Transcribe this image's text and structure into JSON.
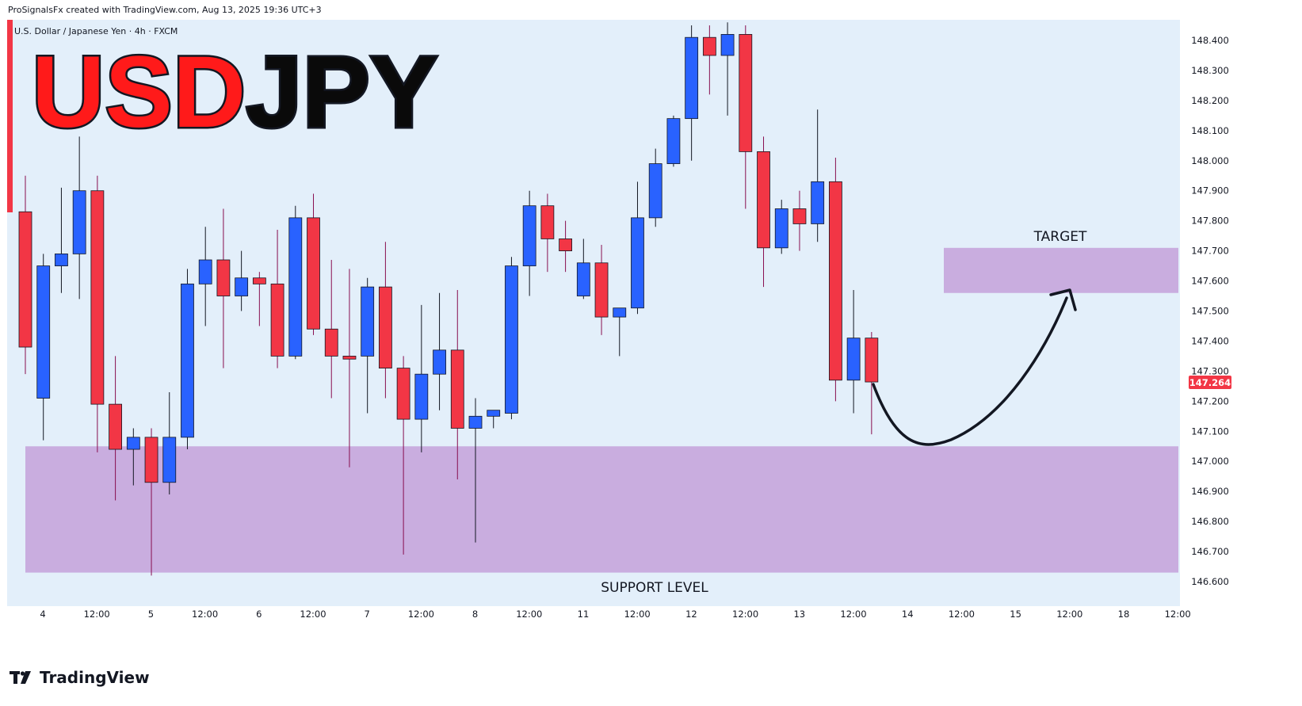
{
  "header": {
    "created_line": "ProSignalsFx created with TradingView.com, Aug 13, 2025 19:36 UTC+3",
    "symbol_line": "U.S. Dollar / Japanese Yen · 4h · FXCM"
  },
  "overlay": {
    "title_red": "USD",
    "title_black": "JPY",
    "target_label": "TARGET",
    "support_label": "SUPPORT LEVEL"
  },
  "brand": {
    "name": "TradingView",
    "icon": "tradingview-logo-icon"
  },
  "colors": {
    "background": "#e3effa",
    "up": "#2962ff",
    "down": "#f23645",
    "zone": "#c9addf",
    "price_tag": "#f23645"
  },
  "chart_data": {
    "type": "candlestick",
    "ylim": [
      146.55,
      148.45
    ],
    "y_ticks": [
      "148.400",
      "148.300",
      "148.200",
      "148.100",
      "148.000",
      "147.900",
      "147.800",
      "147.700",
      "147.600",
      "147.500",
      "147.400",
      "147.300",
      "147.200",
      "147.100",
      "147.000",
      "146.900",
      "146.800",
      "146.700",
      "146.600"
    ],
    "x_ticks": [
      "4",
      "12:00",
      "5",
      "12:00",
      "6",
      "12:00",
      "7",
      "12:00",
      "8",
      "12:00",
      "11",
      "12:00",
      "12",
      "12:00",
      "13",
      "12:00",
      "14",
      "12:00",
      "15",
      "12:00",
      "18",
      "12:00"
    ],
    "last_price": "147.264",
    "candles": [
      {
        "o": 147.83,
        "h": 147.95,
        "l": 147.29,
        "c": 147.38
      },
      {
        "o": 147.21,
        "h": 147.69,
        "l": 147.07,
        "c": 147.65
      },
      {
        "o": 147.65,
        "h": 147.91,
        "l": 147.56,
        "c": 147.69
      },
      {
        "o": 147.69,
        "h": 148.08,
        "l": 147.54,
        "c": 147.9
      },
      {
        "o": 147.9,
        "h": 147.95,
        "l": 147.03,
        "c": 147.19
      },
      {
        "o": 147.19,
        "h": 147.35,
        "l": 146.87,
        "c": 147.04
      },
      {
        "o": 147.04,
        "h": 147.11,
        "l": 146.92,
        "c": 147.08
      },
      {
        "o": 147.08,
        "h": 147.11,
        "l": 146.62,
        "c": 146.93
      },
      {
        "o": 146.93,
        "h": 147.23,
        "l": 146.89,
        "c": 147.08
      },
      {
        "o": 147.08,
        "h": 147.64,
        "l": 147.04,
        "c": 147.59
      },
      {
        "o": 147.59,
        "h": 147.78,
        "l": 147.45,
        "c": 147.67
      },
      {
        "o": 147.67,
        "h": 147.84,
        "l": 147.31,
        "c": 147.55
      },
      {
        "o": 147.55,
        "h": 147.7,
        "l": 147.5,
        "c": 147.61
      },
      {
        "o": 147.61,
        "h": 147.63,
        "l": 147.45,
        "c": 147.59
      },
      {
        "o": 147.59,
        "h": 147.77,
        "l": 147.31,
        "c": 147.35
      },
      {
        "o": 147.35,
        "h": 147.85,
        "l": 147.34,
        "c": 147.81
      },
      {
        "o": 147.81,
        "h": 147.89,
        "l": 147.42,
        "c": 147.44
      },
      {
        "o": 147.44,
        "h": 147.67,
        "l": 147.21,
        "c": 147.35
      },
      {
        "o": 147.35,
        "h": 147.64,
        "l": 146.98,
        "c": 147.34
      },
      {
        "o": 147.35,
        "h": 147.61,
        "l": 147.16,
        "c": 147.58
      },
      {
        "o": 147.58,
        "h": 147.73,
        "l": 147.21,
        "c": 147.31
      },
      {
        "o": 147.31,
        "h": 147.35,
        "l": 146.69,
        "c": 147.14
      },
      {
        "o": 147.14,
        "h": 147.52,
        "l": 147.03,
        "c": 147.29
      },
      {
        "o": 147.29,
        "h": 147.56,
        "l": 147.17,
        "c": 147.37
      },
      {
        "o": 147.37,
        "h": 147.57,
        "l": 146.94,
        "c": 147.11
      },
      {
        "o": 147.11,
        "h": 147.21,
        "l": 146.73,
        "c": 147.15
      },
      {
        "o": 147.15,
        "h": 147.17,
        "l": 147.11,
        "c": 147.17
      },
      {
        "o": 147.16,
        "h": 147.68,
        "l": 147.14,
        "c": 147.65
      },
      {
        "o": 147.65,
        "h": 147.9,
        "l": 147.55,
        "c": 147.85
      },
      {
        "o": 147.85,
        "h": 147.89,
        "l": 147.63,
        "c": 147.74
      },
      {
        "o": 147.74,
        "h": 147.8,
        "l": 147.63,
        "c": 147.7
      },
      {
        "o": 147.55,
        "h": 147.74,
        "l": 147.54,
        "c": 147.66
      },
      {
        "o": 147.66,
        "h": 147.72,
        "l": 147.42,
        "c": 147.48
      },
      {
        "o": 147.48,
        "h": 147.5,
        "l": 147.35,
        "c": 147.51
      },
      {
        "o": 147.51,
        "h": 147.93,
        "l": 147.49,
        "c": 147.81
      },
      {
        "o": 147.81,
        "h": 148.04,
        "l": 147.78,
        "c": 147.99
      },
      {
        "o": 147.99,
        "h": 148.15,
        "l": 147.98,
        "c": 148.14
      },
      {
        "o": 148.14,
        "h": 148.45,
        "l": 148.0,
        "c": 148.41
      },
      {
        "o": 148.41,
        "h": 148.45,
        "l": 148.22,
        "c": 148.35
      },
      {
        "o": 148.35,
        "h": 148.46,
        "l": 148.15,
        "c": 148.42
      },
      {
        "o": 148.42,
        "h": 148.45,
        "l": 147.84,
        "c": 148.03
      },
      {
        "o": 148.03,
        "h": 148.08,
        "l": 147.58,
        "c": 147.71
      },
      {
        "o": 147.71,
        "h": 147.87,
        "l": 147.69,
        "c": 147.84
      },
      {
        "o": 147.84,
        "h": 147.9,
        "l": 147.7,
        "c": 147.79
      },
      {
        "o": 147.79,
        "h": 148.17,
        "l": 147.73,
        "c": 147.93
      },
      {
        "o": 147.93,
        "h": 148.01,
        "l": 147.2,
        "c": 147.27
      },
      {
        "o": 147.27,
        "h": 147.57,
        "l": 147.16,
        "c": 147.41
      },
      {
        "o": 147.41,
        "h": 147.43,
        "l": 147.09,
        "c": 147.264
      }
    ],
    "zones": [
      {
        "label": "SUPPORT LEVEL",
        "from": 146.63,
        "to": 147.05
      },
      {
        "label": "TARGET",
        "from": 147.56,
        "to": 147.71
      }
    ]
  }
}
